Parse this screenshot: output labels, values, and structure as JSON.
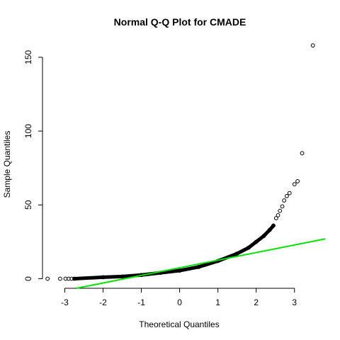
{
  "chart_data": {
    "type": "scatter",
    "title": "Normal Q-Q Plot for CMADE",
    "xlabel": "Theoretical Quantiles",
    "ylabel": "Sample Quantiles",
    "xlim": [
      -3.6,
      3.8
    ],
    "ylim": [
      -6,
      160
    ],
    "xticks": [
      -3,
      -2,
      -1,
      0,
      1,
      2,
      3
    ],
    "yticks": [
      0,
      50,
      100,
      150
    ],
    "colors": {
      "points": "#000000",
      "reference_line": "#00e400"
    },
    "grid": false,
    "reference_line": {
      "x": [
        -2.7,
        3.8
      ],
      "y": [
        -6.5,
        27
      ]
    },
    "series": [
      {
        "points": [
          [
            -3.45,
            0
          ],
          [
            -3.12,
            0
          ],
          [
            -2.98,
            0
          ],
          [
            -2.9,
            0
          ],
          [
            -2.82,
            0
          ],
          [
            -2.75,
            0
          ],
          [
            -2.0,
            1
          ],
          [
            -1.5,
            1.5
          ],
          [
            -1.0,
            2.5
          ],
          [
            -0.5,
            4
          ],
          [
            0.0,
            5.5
          ],
          [
            0.5,
            8
          ],
          [
            1.0,
            12
          ],
          [
            1.5,
            17
          ],
          [
            1.8,
            21
          ],
          [
            2.0,
            25
          ],
          [
            2.2,
            29
          ],
          [
            2.35,
            33
          ],
          [
            2.45,
            36
          ],
          [
            2.52,
            41
          ],
          [
            2.57,
            43
          ],
          [
            2.62,
            46
          ],
          [
            2.68,
            49
          ],
          [
            2.73,
            53
          ],
          [
            2.8,
            56
          ],
          [
            2.87,
            58
          ],
          [
            3.0,
            64
          ],
          [
            3.08,
            66
          ],
          [
            3.2,
            85
          ],
          [
            3.48,
            158
          ]
        ]
      }
    ]
  }
}
